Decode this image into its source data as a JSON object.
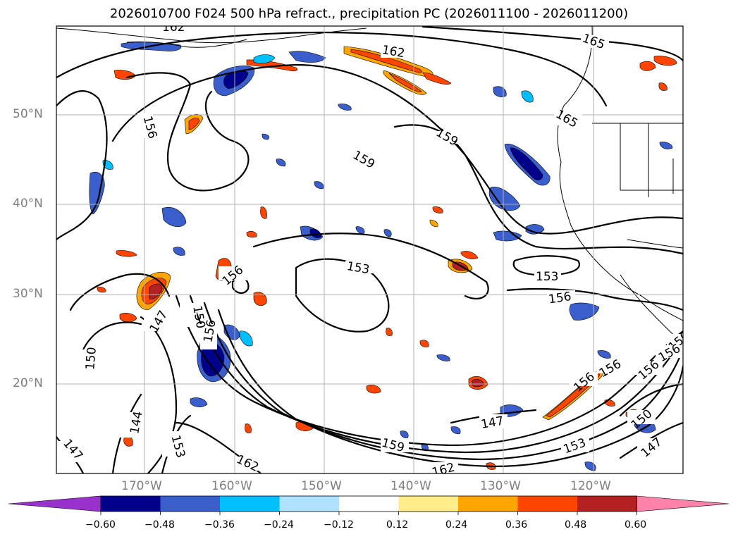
{
  "title": "2026010700 F024 500 hPa refract., precipitation PC (2026011100 - 2026011200)",
  "lat_ticks": [
    "50°N",
    "40°N",
    "30°N",
    "20°N"
  ],
  "lon_ticks": [
    "170°W",
    "160°W",
    "150°W",
    "140°W",
    "130°W",
    "120°W"
  ],
  "contour_labels": [
    "162",
    "162",
    "165",
    "165",
    "159",
    "159",
    "156",
    "156",
    "156",
    "153",
    "153",
    "156",
    "150",
    "147",
    "150",
    "156",
    "156",
    "144",
    "147",
    "153",
    "162",
    "147",
    "159",
    "162",
    "153",
    "150",
    "147",
    "156",
    "150",
    "156"
  ],
  "colorbar": {
    "tick_labels": [
      "−0.60",
      "−0.48",
      "−0.36",
      "−0.24",
      "−0.12",
      "0.12",
      "0.24",
      "0.36",
      "0.48",
      "0.60"
    ],
    "colors": [
      "#9932cc",
      "#00008b",
      "#3a5fcd",
      "#00bfff",
      "#b0e2ff",
      "#ffffff",
      "#ffec8b",
      "#ffa500",
      "#ff4500",
      "#b22222",
      "#ff82ab"
    ]
  },
  "colors": {
    "grid": "#b0b0b0",
    "tick_text": "#7f7f7f",
    "contour": "#000000"
  }
}
